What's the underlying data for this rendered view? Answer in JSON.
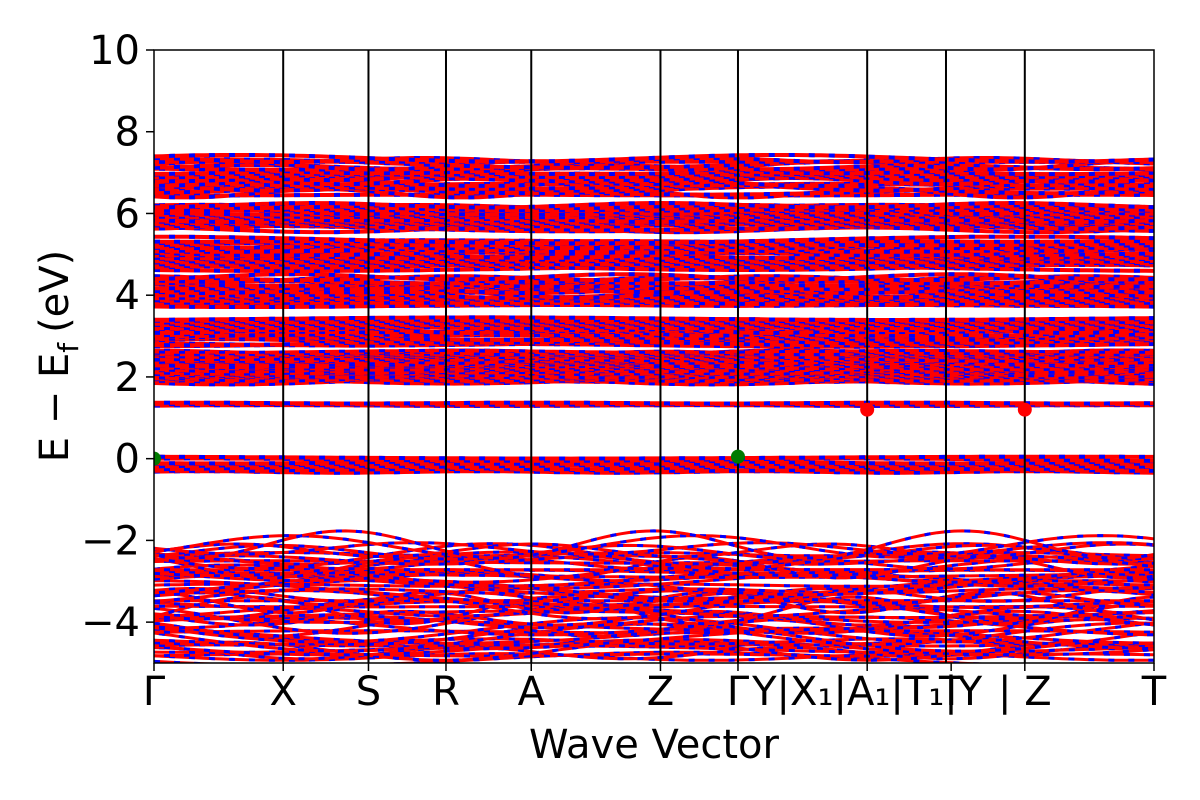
{
  "chart_data": {
    "type": "line",
    "title": "",
    "xlabel": "Wave Vector",
    "ylabel": "E − E",
    "ylabel_subscript": "f",
    "ylabel_unit": "(eV)",
    "ylim": [
      -5,
      10
    ],
    "yticks": [
      -4,
      -2,
      0,
      2,
      4,
      6,
      8,
      10
    ],
    "ytick_labels": [
      "−4",
      "−2",
      "0",
      "2",
      "4",
      "6",
      "8",
      "10"
    ],
    "x_kpoints": [
      {
        "label": "Γ",
        "x": 0.0
      },
      {
        "label": "X",
        "x": 1.0
      },
      {
        "label": "S",
        "x": 1.66
      },
      {
        "label": "R",
        "x": 2.26
      },
      {
        "label": "A",
        "x": 2.92
      },
      {
        "label": "Z",
        "x": 3.92
      },
      {
        "label": "Γ",
        "x": 4.52
      },
      {
        "label": "Y",
        "x": 5.18
      },
      {
        "label": "Y|X",
        "x": 5.52
      },
      {
        "label": "X",
        "x": 5.52
      },
      {
        "label": "1",
        "x": 5.52
      },
      {
        "label": "A",
        "x": 5.8
      },
      {
        "label": "1",
        "x": 5.85
      },
      {
        "label": "|T",
        "x": 6.1
      },
      {
        "label": "1",
        "x": 6.1
      },
      {
        "label": "T",
        "x": 6.17
      },
      {
        "label": "Y",
        "x": 6.3
      },
      {
        "label": "|",
        "x": 6.74
      },
      {
        "label": "Z",
        "x": 6.74
      },
      {
        "label": "T",
        "x": 7.74
      }
    ],
    "x_label_positions": [
      {
        "text": "Γ",
        "x": 0.0
      },
      {
        "text": "X",
        "x": 1.0
      },
      {
        "text": "S",
        "x": 1.66
      },
      {
        "text": "R",
        "x": 2.26
      },
      {
        "text": "A",
        "x": 2.92
      },
      {
        "text": "Z",
        "x": 3.92
      },
      {
        "text": "Γ",
        "x": 4.52
      },
      {
        "text": "Y|X₁|A₁|T₁|Y",
        "x": 5.52
      },
      {
        "text": "T",
        "x": 6.17
      },
      {
        "text": "| Z",
        "x": 6.74
      },
      {
        "text": "T",
        "x": 7.74
      }
    ],
    "vertical_lines": [
      1.0,
      1.66,
      2.26,
      2.92,
      3.92,
      4.52,
      5.52,
      6.13,
      6.74
    ],
    "xlim": [
      0,
      7.74
    ],
    "bands": {
      "color_a": "#ff0000",
      "color_b": "#0000ff",
      "groups": [
        {
          "center": -3.5,
          "width": 2.8,
          "style": "dense"
        },
        {
          "center": -0.15,
          "width": 0.35,
          "style": "thin"
        },
        {
          "center": 1.33,
          "width": 0.06,
          "style": "line"
        },
        {
          "center": 2.25,
          "width": 0.75,
          "style": "dense"
        },
        {
          "center": 3.1,
          "width": 0.65,
          "style": "mixed"
        },
        {
          "center": 4.1,
          "width": 0.7,
          "style": "mixed"
        },
        {
          "center": 5.0,
          "width": 0.7,
          "style": "mixed"
        },
        {
          "center": 5.9,
          "width": 0.6,
          "style": "mixed"
        },
        {
          "center": 6.9,
          "width": 0.9,
          "style": "mixed"
        }
      ]
    },
    "markers": [
      {
        "x": 0.0,
        "y": 0.0,
        "color": "#007a00"
      },
      {
        "x": 4.52,
        "y": 0.05,
        "color": "#007a00"
      },
      {
        "x": 5.52,
        "y": 1.2,
        "color": "#ff0000"
      },
      {
        "x": 6.74,
        "y": 1.2,
        "color": "#ff0000"
      }
    ]
  }
}
